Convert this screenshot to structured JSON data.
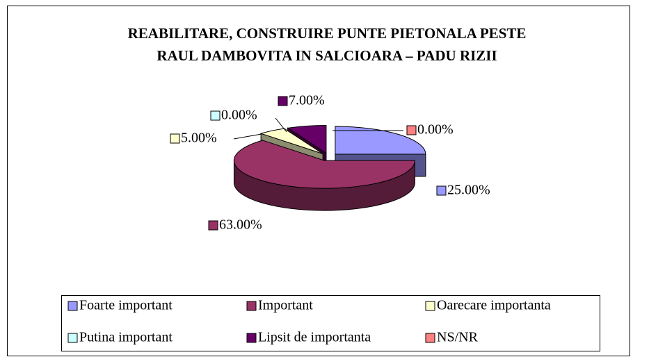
{
  "chart_data": {
    "type": "pie3d",
    "title": [
      "REABILITARE, CONSTRUIRE PUNTE PIETONALA PESTE",
      "RAUL DAMBOVITA IN SALCIOARA – PADU RIZII"
    ],
    "categories": [
      "Foarte important",
      "Important",
      "Oarecare importanta",
      "Putina important",
      "Lipsit de importanta",
      "NS/NR"
    ],
    "values": [
      25,
      63,
      5,
      0,
      7,
      0
    ],
    "value_labels": [
      "25.00%",
      "63.00%",
      "5.00%",
      "0.00%",
      "7.00%",
      "0.00%"
    ],
    "colors": [
      "#9999ff",
      "#993366",
      "#ffffcc",
      "#ccffff",
      "#660066",
      "#ff8080"
    ],
    "legend": "bottom"
  }
}
